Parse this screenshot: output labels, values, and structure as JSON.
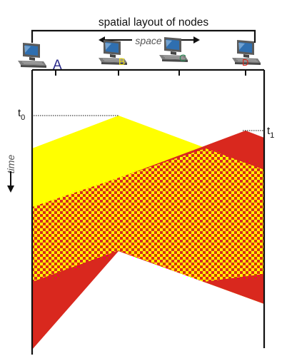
{
  "title": "spatial layout of nodes",
  "space_label": "space",
  "time_label": "time",
  "nodes": [
    {
      "label": "A",
      "label_color": "#2a2a8a"
    },
    {
      "label": "B",
      "label_color": "#f2e21a"
    },
    {
      "label": "C",
      "label_color": "#2e8b57"
    },
    {
      "label": "D",
      "label_color": "#d9281e"
    }
  ],
  "times": [
    {
      "base": "t",
      "sub": "0"
    },
    {
      "base": "t",
      "sub": "1"
    }
  ],
  "colors": {
    "yellow": "#ffff00",
    "red": "#d9281e",
    "line": "#111111",
    "computer_body": "#7d7d7d",
    "computer_screen": "#2f6fb0"
  }
}
